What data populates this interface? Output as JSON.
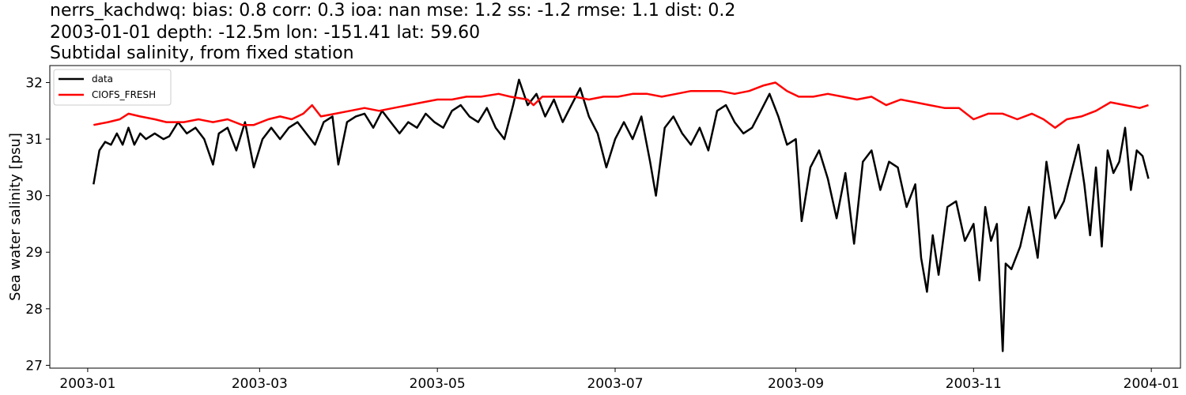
{
  "title_lines": [
    "nerrs_kachdwq: bias: 0.8  corr: 0.3  ioa: nan  mse: 1.2  ss: -1.2  rmse: 1.1  dist: 0.2",
    "2003-01-01 depth: -12.5m lon: -151.41 lat: 59.60",
    "Subtidal salinity, from fixed station"
  ],
  "chart_data": {
    "type": "line",
    "ylabel": "Sea water salinity [psu]",
    "xlim": [
      "2002-12-19",
      "2004-01-11"
    ],
    "ylim": [
      26.95,
      32.3
    ],
    "x_ticks": [
      "2003-01",
      "2003-03",
      "2003-05",
      "2003-07",
      "2003-09",
      "2003-11",
      "2004-01"
    ],
    "y_ticks": [
      27,
      28,
      29,
      30,
      31,
      32
    ],
    "grid": false,
    "legend_position": "upper left",
    "series": [
      {
        "name": "data",
        "color": "#000000",
        "points": [
          [
            "2003-01-03",
            30.2
          ],
          [
            "2003-01-05",
            30.8
          ],
          [
            "2003-01-07",
            30.95
          ],
          [
            "2003-01-09",
            30.9
          ],
          [
            "2003-01-11",
            31.1
          ],
          [
            "2003-01-13",
            30.9
          ],
          [
            "2003-01-15",
            31.2
          ],
          [
            "2003-01-17",
            30.9
          ],
          [
            "2003-01-19",
            31.1
          ],
          [
            "2003-01-21",
            31.0
          ],
          [
            "2003-01-24",
            31.1
          ],
          [
            "2003-01-27",
            31.0
          ],
          [
            "2003-01-29",
            31.05
          ],
          [
            "2003-02-01",
            31.3
          ],
          [
            "2003-02-04",
            31.1
          ],
          [
            "2003-02-07",
            31.2
          ],
          [
            "2003-02-10",
            31.0
          ],
          [
            "2003-02-13",
            30.55
          ],
          [
            "2003-02-15",
            31.1
          ],
          [
            "2003-02-18",
            31.2
          ],
          [
            "2003-02-21",
            30.8
          ],
          [
            "2003-02-24",
            31.3
          ],
          [
            "2003-02-27",
            30.5
          ],
          [
            "2003-03-02",
            31.0
          ],
          [
            "2003-03-05",
            31.2
          ],
          [
            "2003-03-08",
            31.0
          ],
          [
            "2003-03-11",
            31.2
          ],
          [
            "2003-03-14",
            31.3
          ],
          [
            "2003-03-17",
            31.1
          ],
          [
            "2003-03-20",
            30.9
          ],
          [
            "2003-03-23",
            31.3
          ],
          [
            "2003-03-26",
            31.4
          ],
          [
            "2003-03-28",
            30.55
          ],
          [
            "2003-03-31",
            31.3
          ],
          [
            "2003-04-03",
            31.4
          ],
          [
            "2003-04-06",
            31.45
          ],
          [
            "2003-04-09",
            31.2
          ],
          [
            "2003-04-12",
            31.5
          ],
          [
            "2003-04-15",
            31.3
          ],
          [
            "2003-04-18",
            31.1
          ],
          [
            "2003-04-21",
            31.3
          ],
          [
            "2003-04-24",
            31.2
          ],
          [
            "2003-04-27",
            31.45
          ],
          [
            "2003-04-30",
            31.3
          ],
          [
            "2003-05-03",
            31.2
          ],
          [
            "2003-05-06",
            31.5
          ],
          [
            "2003-05-09",
            31.6
          ],
          [
            "2003-05-12",
            31.4
          ],
          [
            "2003-05-15",
            31.3
          ],
          [
            "2003-05-18",
            31.55
          ],
          [
            "2003-05-21",
            31.2
          ],
          [
            "2003-05-24",
            31.0
          ],
          [
            "2003-05-27",
            31.6
          ],
          [
            "2003-05-29",
            32.05
          ],
          [
            "2003-06-01",
            31.6
          ],
          [
            "2003-06-04",
            31.8
          ],
          [
            "2003-06-07",
            31.4
          ],
          [
            "2003-06-10",
            31.7
          ],
          [
            "2003-06-13",
            31.3
          ],
          [
            "2003-06-16",
            31.6
          ],
          [
            "2003-06-19",
            31.9
          ],
          [
            "2003-06-22",
            31.4
          ],
          [
            "2003-06-25",
            31.1
          ],
          [
            "2003-06-28",
            30.5
          ],
          [
            "2003-07-01",
            31.0
          ],
          [
            "2003-07-04",
            31.3
          ],
          [
            "2003-07-07",
            31.0
          ],
          [
            "2003-07-10",
            31.4
          ],
          [
            "2003-07-13",
            30.6
          ],
          [
            "2003-07-15",
            30.0
          ],
          [
            "2003-07-18",
            31.2
          ],
          [
            "2003-07-21",
            31.4
          ],
          [
            "2003-07-24",
            31.1
          ],
          [
            "2003-07-27",
            30.9
          ],
          [
            "2003-07-30",
            31.2
          ],
          [
            "2003-08-02",
            30.8
          ],
          [
            "2003-08-05",
            31.5
          ],
          [
            "2003-08-08",
            31.6
          ],
          [
            "2003-08-11",
            31.3
          ],
          [
            "2003-08-14",
            31.1
          ],
          [
            "2003-08-17",
            31.2
          ],
          [
            "2003-08-20",
            31.5
          ],
          [
            "2003-08-23",
            31.8
          ],
          [
            "2003-08-26",
            31.4
          ],
          [
            "2003-08-29",
            30.9
          ],
          [
            "2003-09-01",
            31.0
          ],
          [
            "2003-09-03",
            29.55
          ],
          [
            "2003-09-06",
            30.5
          ],
          [
            "2003-09-09",
            30.8
          ],
          [
            "2003-09-12",
            30.3
          ],
          [
            "2003-09-15",
            29.6
          ],
          [
            "2003-09-18",
            30.4
          ],
          [
            "2003-09-21",
            29.15
          ],
          [
            "2003-09-24",
            30.6
          ],
          [
            "2003-09-27",
            30.8
          ],
          [
            "2003-09-30",
            30.1
          ],
          [
            "2003-10-03",
            30.6
          ],
          [
            "2003-10-06",
            30.5
          ],
          [
            "2003-10-09",
            29.8
          ],
          [
            "2003-10-12",
            30.2
          ],
          [
            "2003-10-14",
            28.9
          ],
          [
            "2003-10-16",
            28.3
          ],
          [
            "2003-10-18",
            29.3
          ],
          [
            "2003-10-20",
            28.6
          ],
          [
            "2003-10-23",
            29.8
          ],
          [
            "2003-10-26",
            29.9
          ],
          [
            "2003-10-29",
            29.2
          ],
          [
            "2003-11-01",
            29.5
          ],
          [
            "2003-11-03",
            28.5
          ],
          [
            "2003-11-05",
            29.8
          ],
          [
            "2003-11-07",
            29.2
          ],
          [
            "2003-11-09",
            29.5
          ],
          [
            "2003-11-10",
            28.4
          ],
          [
            "2003-11-11",
            27.25
          ],
          [
            "2003-11-12",
            28.8
          ],
          [
            "2003-11-14",
            28.7
          ],
          [
            "2003-11-17",
            29.1
          ],
          [
            "2003-11-20",
            29.8
          ],
          [
            "2003-11-23",
            28.9
          ],
          [
            "2003-11-26",
            30.6
          ],
          [
            "2003-11-29",
            29.6
          ],
          [
            "2003-12-02",
            29.9
          ],
          [
            "2003-12-05",
            30.5
          ],
          [
            "2003-12-07",
            30.9
          ],
          [
            "2003-12-09",
            30.2
          ],
          [
            "2003-12-11",
            29.3
          ],
          [
            "2003-12-13",
            30.5
          ],
          [
            "2003-12-15",
            29.1
          ],
          [
            "2003-12-17",
            30.8
          ],
          [
            "2003-12-19",
            30.4
          ],
          [
            "2003-12-21",
            30.6
          ],
          [
            "2003-12-23",
            31.2
          ],
          [
            "2003-12-25",
            30.1
          ],
          [
            "2003-12-27",
            30.8
          ],
          [
            "2003-12-29",
            30.7
          ],
          [
            "2003-12-31",
            30.3
          ]
        ]
      },
      {
        "name": "CIOFS_FRESH",
        "color": "#ff0000",
        "points": [
          [
            "2003-01-03",
            31.25
          ],
          [
            "2003-01-08",
            31.3
          ],
          [
            "2003-01-12",
            31.35
          ],
          [
            "2003-01-15",
            31.45
          ],
          [
            "2003-01-19",
            31.4
          ],
          [
            "2003-01-24",
            31.35
          ],
          [
            "2003-01-28",
            31.3
          ],
          [
            "2003-02-03",
            31.3
          ],
          [
            "2003-02-08",
            31.35
          ],
          [
            "2003-02-13",
            31.3
          ],
          [
            "2003-02-18",
            31.35
          ],
          [
            "2003-02-23",
            31.25
          ],
          [
            "2003-02-27",
            31.25
          ],
          [
            "2003-03-04",
            31.35
          ],
          [
            "2003-03-08",
            31.4
          ],
          [
            "2003-03-12",
            31.35
          ],
          [
            "2003-03-16",
            31.45
          ],
          [
            "2003-03-19",
            31.6
          ],
          [
            "2003-03-22",
            31.4
          ],
          [
            "2003-03-27",
            31.45
          ],
          [
            "2003-04-01",
            31.5
          ],
          [
            "2003-04-06",
            31.55
          ],
          [
            "2003-04-11",
            31.5
          ],
          [
            "2003-04-16",
            31.55
          ],
          [
            "2003-04-21",
            31.6
          ],
          [
            "2003-04-26",
            31.65
          ],
          [
            "2003-05-01",
            31.7
          ],
          [
            "2003-05-06",
            31.7
          ],
          [
            "2003-05-11",
            31.75
          ],
          [
            "2003-05-16",
            31.75
          ],
          [
            "2003-05-22",
            31.8
          ],
          [
            "2003-05-26",
            31.75
          ],
          [
            "2003-06-01",
            31.7
          ],
          [
            "2003-06-03",
            31.6
          ],
          [
            "2003-06-06",
            31.75
          ],
          [
            "2003-06-12",
            31.75
          ],
          [
            "2003-06-17",
            31.75
          ],
          [
            "2003-06-22",
            31.7
          ],
          [
            "2003-06-27",
            31.75
          ],
          [
            "2003-07-02",
            31.75
          ],
          [
            "2003-07-07",
            31.8
          ],
          [
            "2003-07-12",
            31.8
          ],
          [
            "2003-07-17",
            31.75
          ],
          [
            "2003-07-22",
            31.8
          ],
          [
            "2003-07-27",
            31.85
          ],
          [
            "2003-08-01",
            31.85
          ],
          [
            "2003-08-06",
            31.85
          ],
          [
            "2003-08-11",
            31.8
          ],
          [
            "2003-08-16",
            31.85
          ],
          [
            "2003-08-21",
            31.95
          ],
          [
            "2003-08-25",
            32.0
          ],
          [
            "2003-08-29",
            31.85
          ],
          [
            "2003-09-02",
            31.75
          ],
          [
            "2003-09-07",
            31.75
          ],
          [
            "2003-09-12",
            31.8
          ],
          [
            "2003-09-17",
            31.75
          ],
          [
            "2003-09-22",
            31.7
          ],
          [
            "2003-09-27",
            31.75
          ],
          [
            "2003-10-02",
            31.6
          ],
          [
            "2003-10-07",
            31.7
          ],
          [
            "2003-10-12",
            31.65
          ],
          [
            "2003-10-17",
            31.6
          ],
          [
            "2003-10-22",
            31.55
          ],
          [
            "2003-10-27",
            31.55
          ],
          [
            "2003-11-01",
            31.35
          ],
          [
            "2003-11-06",
            31.45
          ],
          [
            "2003-11-11",
            31.45
          ],
          [
            "2003-11-16",
            31.35
          ],
          [
            "2003-11-21",
            31.45
          ],
          [
            "2003-11-25",
            31.35
          ],
          [
            "2003-11-29",
            31.2
          ],
          [
            "2003-12-03",
            31.35
          ],
          [
            "2003-12-08",
            31.4
          ],
          [
            "2003-12-13",
            31.5
          ],
          [
            "2003-12-18",
            31.65
          ],
          [
            "2003-12-23",
            31.6
          ],
          [
            "2003-12-28",
            31.55
          ],
          [
            "2003-12-31",
            31.6
          ]
        ]
      }
    ]
  }
}
